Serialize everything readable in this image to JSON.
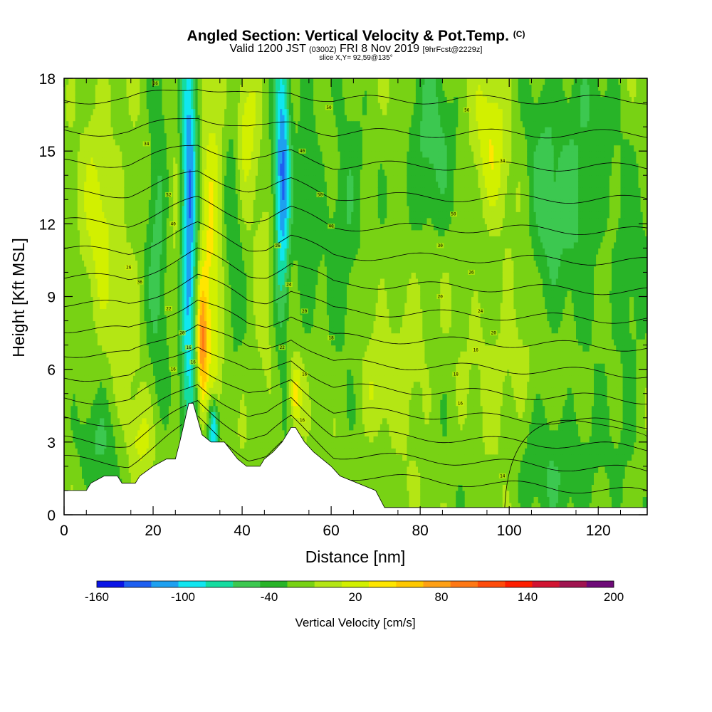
{
  "title": {
    "main": "Angled Section: Vertical Velocity & Pot.Temp.",
    "tag": "(C)",
    "valid_prefix": "Valid 1200 JST",
    "valid_z": "(0300Z)",
    "valid_date": "FRI 8 Nov 2019",
    "forecast": "[9hrFcst@2229z]",
    "slice": "slice X,Y= 92,59@135°"
  },
  "chart_data": {
    "type": "heatmap",
    "xlabel": "Distance [nm]",
    "ylabel": "Height [Kft MSL]",
    "xlim": [
      0,
      131
    ],
    "ylim": [
      0,
      18
    ],
    "x_ticks": [
      0,
      20,
      40,
      60,
      80,
      100,
      120
    ],
    "y_ticks": [
      0,
      3,
      6,
      9,
      12,
      15,
      18
    ],
    "colorbar": {
      "title": "Vertical Velocity [cm/s]",
      "bounds": [
        -160,
        -140,
        -120,
        -100,
        -80,
        -60,
        -40,
        -20,
        0,
        20,
        40,
        60,
        80,
        100,
        120,
        140,
        160,
        180,
        200
      ],
      "tick_labels": [
        "-160",
        "-100",
        "-40",
        "20",
        "80",
        "140",
        "200"
      ],
      "colors": [
        "#0a14e6",
        "#1e5ff0",
        "#1ea0f0",
        "#10e6f0",
        "#14dca0",
        "#3cc850",
        "#28b428",
        "#78d214",
        "#b4e614",
        "#d2f000",
        "#ffe600",
        "#ffc800",
        "#ffa014",
        "#ff7814",
        "#ff4b0a",
        "#ff1e00",
        "#d21432",
        "#a01450",
        "#6e0a78"
      ]
    },
    "terrain": [
      [
        0,
        1.0
      ],
      [
        5,
        1.0
      ],
      [
        6,
        1.3
      ],
      [
        9,
        1.6
      ],
      [
        12,
        1.6
      ],
      [
        13,
        1.3
      ],
      [
        16,
        1.3
      ],
      [
        17,
        1.6
      ],
      [
        20,
        2.0
      ],
      [
        23,
        2.3
      ],
      [
        25,
        2.3
      ],
      [
        26,
        3.0
      ],
      [
        28,
        4.6
      ],
      [
        29,
        4.6
      ],
      [
        31,
        3.3
      ],
      [
        33,
        3.0
      ],
      [
        36,
        3.0
      ],
      [
        39,
        2.3
      ],
      [
        41,
        2.0
      ],
      [
        44,
        2.0
      ],
      [
        45,
        2.3
      ],
      [
        47,
        2.6
      ],
      [
        49,
        3.0
      ],
      [
        51,
        3.6
      ],
      [
        52,
        3.6
      ],
      [
        54,
        3.0
      ],
      [
        56,
        2.6
      ],
      [
        58,
        2.3
      ],
      [
        60,
        2.0
      ],
      [
        62,
        1.6
      ],
      [
        66,
        1.3
      ],
      [
        70,
        1.0
      ],
      [
        72,
        0.3
      ],
      [
        131,
        0.3
      ]
    ],
    "contours": {
      "variable": "Potential temperature",
      "labels": [
        {
          "x": 20.5,
          "y": 17.8,
          "text": "26"
        },
        {
          "x": 59.5,
          "y": 16.8,
          "text": "50"
        },
        {
          "x": 90.5,
          "y": 16.7,
          "text": "56"
        },
        {
          "x": 18.5,
          "y": 15.3,
          "text": "34"
        },
        {
          "x": 53.5,
          "y": 15.0,
          "text": "40"
        },
        {
          "x": 98.5,
          "y": 14.6,
          "text": "34"
        },
        {
          "x": 23.5,
          "y": 13.2,
          "text": "52"
        },
        {
          "x": 57.5,
          "y": 13.2,
          "text": "50"
        },
        {
          "x": 87.5,
          "y": 12.4,
          "text": "50"
        },
        {
          "x": 24.5,
          "y": 12.0,
          "text": "40"
        },
        {
          "x": 60.0,
          "y": 11.9,
          "text": "40"
        },
        {
          "x": 48.0,
          "y": 11.1,
          "text": "26"
        },
        {
          "x": 84.5,
          "y": 11.1,
          "text": "30"
        },
        {
          "x": 14.5,
          "y": 10.2,
          "text": "26"
        },
        {
          "x": 91.5,
          "y": 10.0,
          "text": "26"
        },
        {
          "x": 17.0,
          "y": 9.6,
          "text": "36"
        },
        {
          "x": 50.5,
          "y": 9.5,
          "text": "24"
        },
        {
          "x": 84.5,
          "y": 9.0,
          "text": "20"
        },
        {
          "x": 23.5,
          "y": 8.5,
          "text": "22"
        },
        {
          "x": 93.5,
          "y": 8.4,
          "text": "24"
        },
        {
          "x": 54.0,
          "y": 8.4,
          "text": "20"
        },
        {
          "x": 26.5,
          "y": 7.5,
          "text": "20"
        },
        {
          "x": 96.5,
          "y": 7.5,
          "text": "20"
        },
        {
          "x": 60.0,
          "y": 7.3,
          "text": "18"
        },
        {
          "x": 28.0,
          "y": 6.9,
          "text": "16"
        },
        {
          "x": 49.0,
          "y": 6.9,
          "text": "22"
        },
        {
          "x": 92.5,
          "y": 6.8,
          "text": "16"
        },
        {
          "x": 29.0,
          "y": 6.3,
          "text": "16"
        },
        {
          "x": 24.5,
          "y": 6.0,
          "text": "16"
        },
        {
          "x": 54.0,
          "y": 5.8,
          "text": "16"
        },
        {
          "x": 88.0,
          "y": 5.8,
          "text": "18"
        },
        {
          "x": 89.0,
          "y": 4.6,
          "text": "16"
        },
        {
          "x": 53.5,
          "y": 3.9,
          "text": "16"
        },
        {
          "x": 98.5,
          "y": 1.6,
          "text": "14"
        }
      ]
    }
  }
}
